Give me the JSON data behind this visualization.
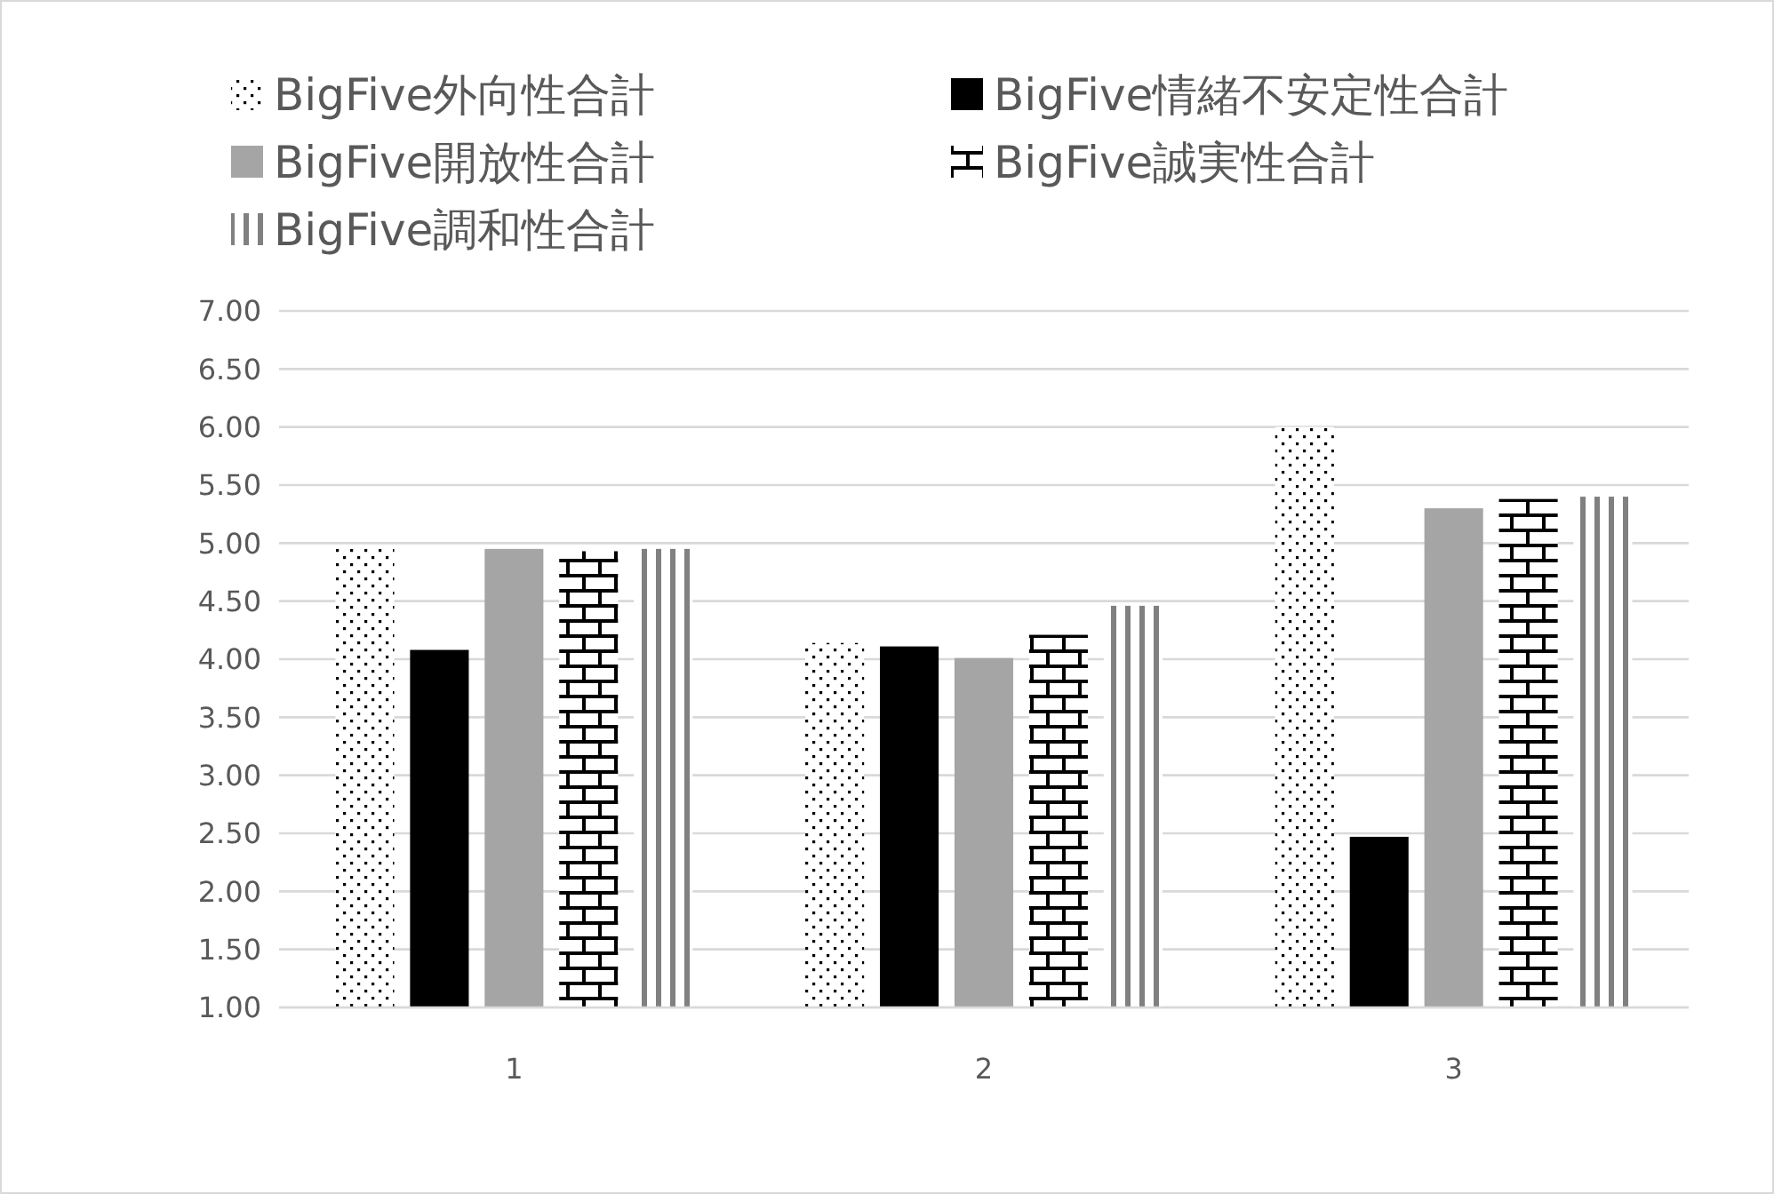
{
  "chart_data": {
    "type": "bar",
    "categories": [
      "1",
      "2",
      "3"
    ],
    "series": [
      {
        "name": "BigFive外向性合計",
        "color": "#000000",
        "values": [
          4.95,
          4.14,
          6.0
        ]
      },
      {
        "name": "BigFive情緒不安定性合計",
        "color": "#000000",
        "values": [
          4.08,
          4.11,
          2.47
        ]
      },
      {
        "name": "BigFive開放性合計",
        "color": "#a5a5a5",
        "values": [
          4.95,
          4.01,
          5.3
        ]
      },
      {
        "name": "BigFive誠実性合計",
        "color": "#000000",
        "values": [
          4.93,
          4.21,
          5.38
        ]
      },
      {
        "name": "BigFive調和性合計",
        "color": "#808080",
        "values": [
          4.95,
          4.46,
          5.4
        ]
      }
    ],
    "ylim": [
      1,
      7
    ],
    "yticks": [
      {
        "value": 1,
        "label": "1.00"
      },
      {
        "value": 1.5,
        "label": "1.50"
      },
      {
        "value": 2,
        "label": "2.00"
      },
      {
        "value": 2.5,
        "label": "2.50"
      },
      {
        "value": 3,
        "label": "3.00"
      },
      {
        "value": 3.5,
        "label": "3.50"
      },
      {
        "value": 4,
        "label": "4.00"
      },
      {
        "value": 4.5,
        "label": "4.50"
      },
      {
        "value": 5,
        "label": "5.00"
      },
      {
        "value": 5.5,
        "label": "5.50"
      },
      {
        "value": 6,
        "label": "6.00"
      },
      {
        "value": 6.5,
        "label": "6.50"
      },
      {
        "value": 7,
        "label": "7.00"
      }
    ],
    "grid": "y",
    "legend": "top"
  }
}
